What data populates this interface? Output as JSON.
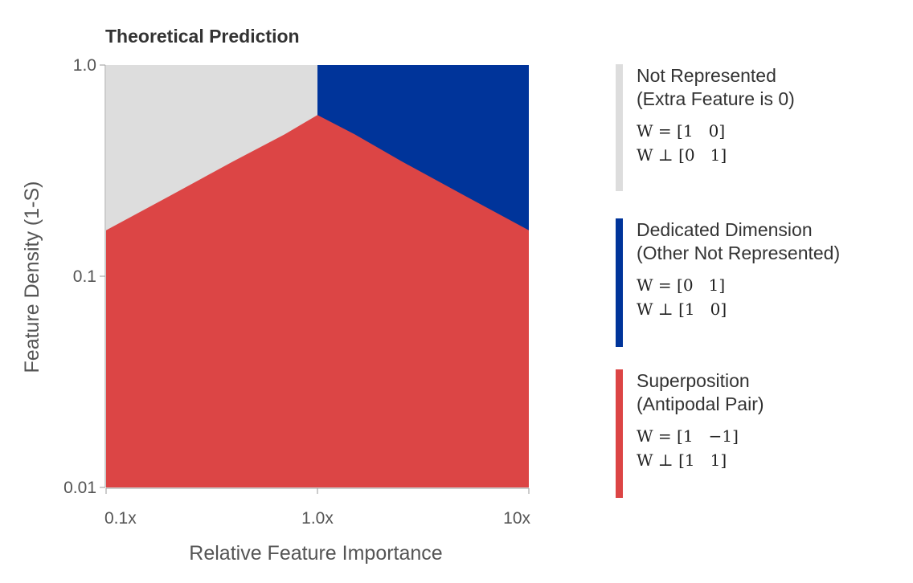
{
  "chart_data": {
    "type": "heatmap",
    "title": "Theoretical Prediction",
    "xlabel": "Relative Feature Importance",
    "ylabel": "Feature Density (1-S)",
    "x_scale": "log",
    "y_scale": "log",
    "xlim": [
      0.1,
      10
    ],
    "ylim": [
      0.01,
      1.0
    ],
    "x_ticks": [
      "0.1x",
      "1.0x",
      "10x"
    ],
    "y_ticks": [
      "1.0",
      "0.1",
      "0.01"
    ],
    "regions": [
      {
        "name": "Not Represented",
        "subtitle": "(Extra Feature is 0)",
        "color": "#dddddd",
        "math_line1": "W = [1   0]",
        "math_line2": "W ⊥ [0   1]"
      },
      {
        "name": "Dedicated Dimension",
        "subtitle": "(Other Not Represented)",
        "color": "#00349a",
        "math_line1": "W = [0   1]",
        "math_line2": "W ⊥ [1   0]"
      },
      {
        "name": "Superposition",
        "subtitle": "(Antipodal Pair)",
        "color": "#dc4545",
        "math_line1": "W = [1   −1]",
        "math_line2": "W ⊥ [1   1]"
      }
    ],
    "boundary": {
      "superposition_upper": [
        {
          "x": 0.1,
          "y": 0.165
        },
        {
          "x": 0.2,
          "y": 0.24
        },
        {
          "x": 0.4,
          "y": 0.35
        },
        {
          "x": 0.7,
          "y": 0.47
        },
        {
          "x": 1.0,
          "y": 0.58
        },
        {
          "x": 1.5,
          "y": 0.47
        },
        {
          "x": 2.5,
          "y": 0.35
        },
        {
          "x": 5.0,
          "y": 0.24
        },
        {
          "x": 10.0,
          "y": 0.165
        }
      ],
      "dedicated_min_x": 1.0
    },
    "legend_position": "right"
  }
}
